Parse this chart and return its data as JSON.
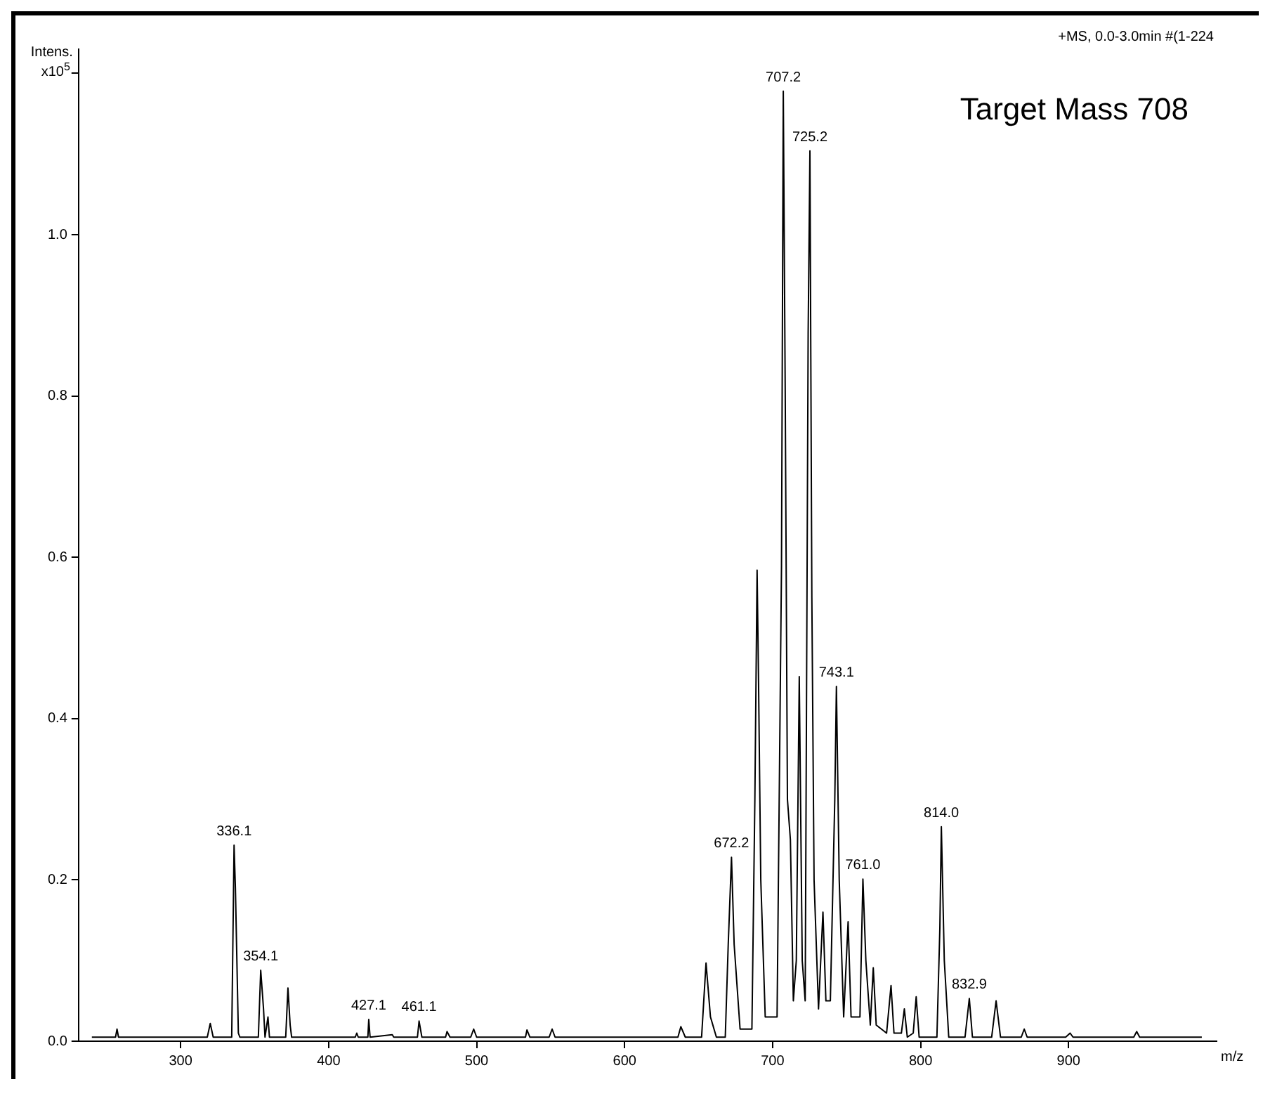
{
  "chart_data": {
    "type": "line",
    "ylabel": "Intens. x10$^{5}$",
    "xlabel": "m/z",
    "x": [
      240,
      256,
      257,
      258,
      318,
      320,
      322,
      334.5,
      336.1,
      337,
      339,
      340,
      352.5,
      354.1,
      356,
      357,
      359,
      360,
      371,
      372.5,
      374,
      375,
      418,
      419,
      420,
      426.5,
      427.1,
      428,
      443,
      444,
      460,
      461.1,
      463,
      479,
      480,
      482,
      496,
      498,
      500,
      533,
      534,
      536,
      549,
      551,
      553,
      636,
      638,
      641,
      652,
      655,
      658,
      662,
      668,
      670,
      672.2,
      674,
      678,
      686,
      688,
      689.5,
      690.5,
      692,
      695,
      703,
      706,
      707.2,
      708.5,
      710,
      712,
      714,
      716,
      718,
      720,
      722,
      724,
      725.2,
      726.5,
      728,
      731,
      734,
      736,
      739,
      742,
      743.1,
      745,
      748,
      751,
      753,
      759,
      761.0,
      763,
      766,
      768,
      770,
      777,
      780,
      782,
      787,
      789,
      791,
      795,
      797,
      799,
      811,
      813,
      814.0,
      816,
      819,
      830,
      832.9,
      835,
      848,
      851,
      854,
      868,
      870,
      872,
      898,
      901,
      903,
      944,
      946,
      948,
      990
    ],
    "series": [
      {
        "color": "#000000",
        "values": [
          0.005,
          0.005,
          0.015,
          0.005,
          0.005,
          0.022,
          0.005,
          0.005,
          0.243,
          0.19,
          0.01,
          0.005,
          0.005,
          0.088,
          0.04,
          0.005,
          0.03,
          0.005,
          0.005,
          0.066,
          0.02,
          0.005,
          0.005,
          0.01,
          0.005,
          0.005,
          0.027,
          0.005,
          0.008,
          0.005,
          0.005,
          0.025,
          0.005,
          0.005,
          0.012,
          0.005,
          0.005,
          0.015,
          0.005,
          0.005,
          0.014,
          0.005,
          0.005,
          0.015,
          0.005,
          0.005,
          0.018,
          0.005,
          0.005,
          0.097,
          0.03,
          0.005,
          0.005,
          0.12,
          0.228,
          0.12,
          0.015,
          0.015,
          0.3,
          0.584,
          0.444,
          0.2,
          0.03,
          0.03,
          0.59,
          1.178,
          0.806,
          0.3,
          0.25,
          0.05,
          0.1,
          0.452,
          0.1,
          0.05,
          0.877,
          1.104,
          0.55,
          0.2,
          0.04,
          0.16,
          0.05,
          0.05,
          0.3,
          0.44,
          0.2,
          0.03,
          0.148,
          0.03,
          0.03,
          0.201,
          0.1,
          0.02,
          0.091,
          0.02,
          0.01,
          0.069,
          0.01,
          0.01,
          0.04,
          0.005,
          0.01,
          0.055,
          0.005,
          0.005,
          0.14,
          0.266,
          0.1,
          0.005,
          0.005,
          0.053,
          0.005,
          0.005,
          0.05,
          0.005,
          0.005,
          0.015,
          0.005,
          0.005,
          0.01,
          0.005,
          0.005,
          0.012,
          0.005,
          0.005
        ]
      }
    ],
    "xlim": [
      231,
      1000
    ],
    "xticks": [
      300,
      400,
      500,
      600,
      700,
      800,
      900
    ],
    "ylim": [
      0,
      1.23
    ],
    "yticks": [
      {
        "value": 0,
        "label": "0.0"
      },
      0.2,
      0.4,
      0.6,
      0.8,
      {
        "value": 1,
        "label": "1.0"
      },
      {
        "value": 1.2,
        "label": null
      }
    ],
    "grid": false,
    "legend": false,
    "marker": "none",
    "line_style": "solid",
    "annotations": [
      "+MS, 0.0-3.0min #(1-224",
      "Target Mass 708",
      {
        "text": "336.1",
        "x": 336.1,
        "y": 0.243
      },
      {
        "text": "354.1",
        "x": 354.1,
        "y": 0.088
      },
      {
        "text": "427.1",
        "x": 427.1,
        "y": 0.027
      },
      {
        "text": "461.1",
        "x": 461.1,
        "y": 0.025
      },
      {
        "text": "672.2",
        "x": 672.2,
        "y": 0.228
      },
      {
        "text": "707.2",
        "x": 707.2,
        "y": 1.178
      },
      {
        "text": "725.2",
        "x": 725.2,
        "y": 1.104
      },
      {
        "text": "743.1",
        "x": 743.1,
        "y": 0.44
      },
      {
        "text": "761.0",
        "x": 761.0,
        "y": 0.201
      },
      {
        "text": "814.0",
        "x": 814.0,
        "y": 0.266
      },
      {
        "text": "832.9",
        "x": 832.9,
        "y": 0.053
      }
    ]
  }
}
